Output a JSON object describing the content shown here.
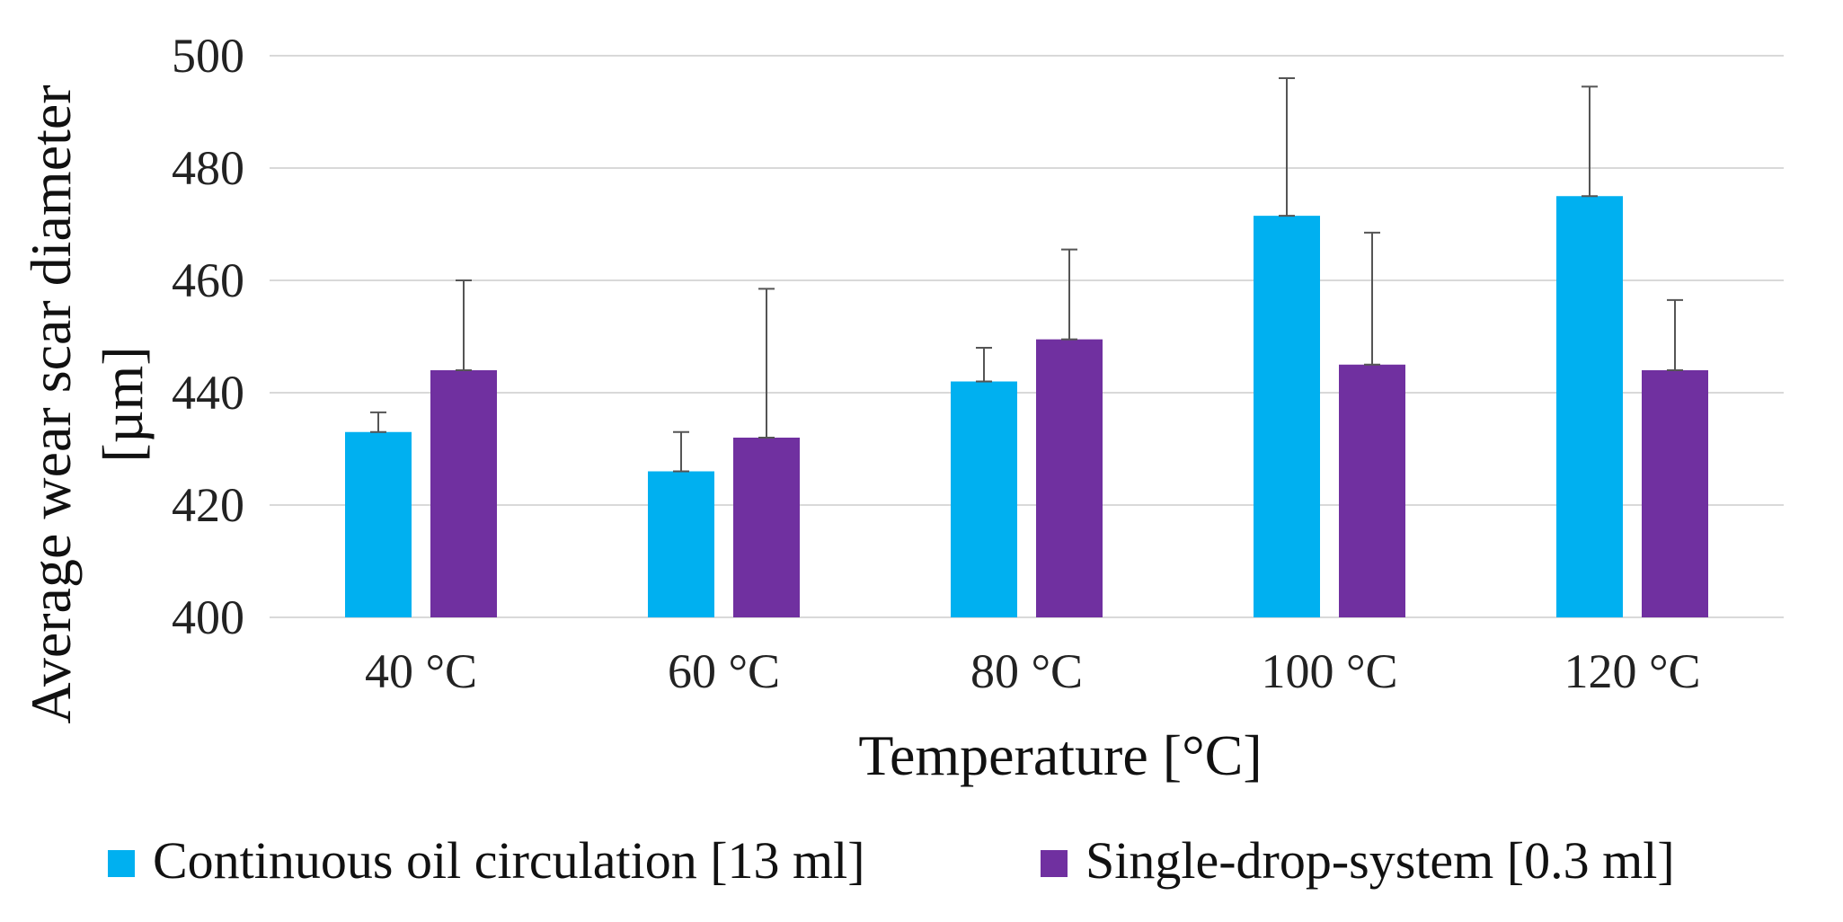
{
  "chart_data": {
    "type": "bar",
    "title": "",
    "xlabel": "Temperature [°C]",
    "ylabel_lines": [
      "Average wear scar diameter",
      "[µm]"
    ],
    "ylim": [
      400,
      500
    ],
    "yticks": [
      400,
      420,
      440,
      460,
      480,
      500
    ],
    "grid": true,
    "legend_position": "bottom",
    "categories": [
      "40 °C",
      "60 °C",
      "80 °C",
      "100 °C",
      "120 °C"
    ],
    "series": [
      {
        "name": "Continuous oil circulation [13 ml]",
        "color": "#00b0f0",
        "values": [
          433,
          426,
          442,
          471.5,
          475
        ],
        "error_upper": [
          436.5,
          433,
          448,
          496,
          494.5
        ]
      },
      {
        "name": "Single-drop-system [0.3 ml]",
        "color": "#7030a0",
        "values": [
          444,
          432,
          449.5,
          445,
          444
        ],
        "error_upper": [
          460,
          458.5,
          465.5,
          468.5,
          456.5
        ]
      }
    ]
  }
}
